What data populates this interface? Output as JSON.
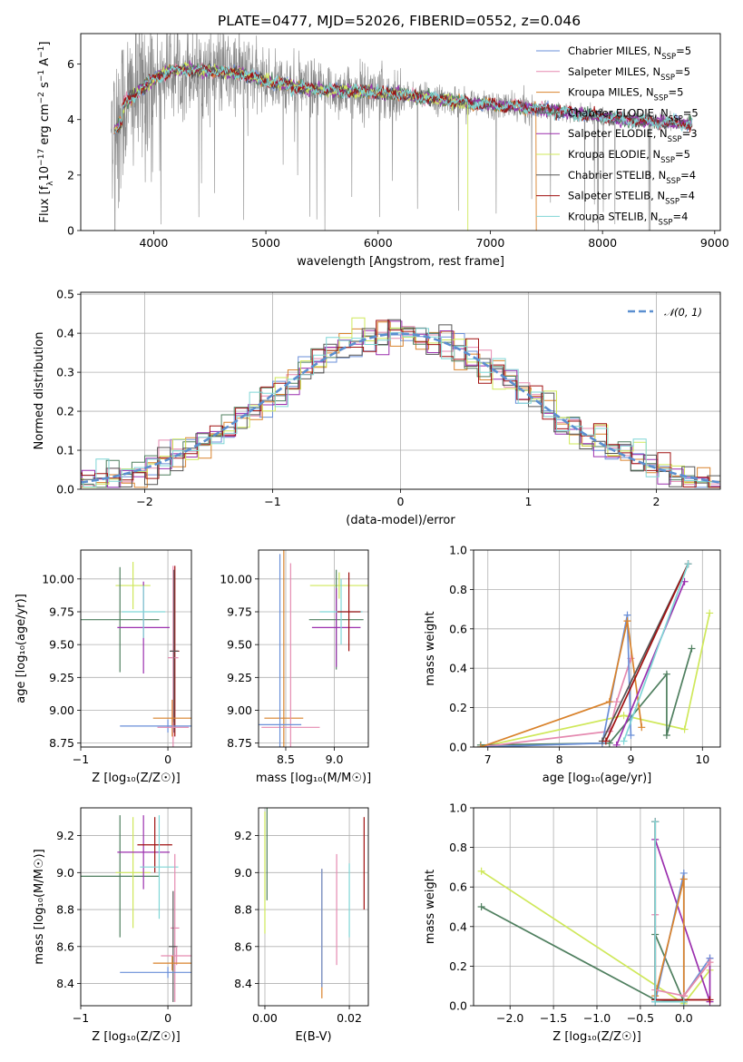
{
  "title": "PLATE=0477, MJD=52026, FIBERID=0552, z=0.046",
  "colors": {
    "chabrier_miles": "#6a8fd8",
    "salpeter_miles": "#e58ab0",
    "kroupa_miles": "#d9822b",
    "chabrier_elodie": "#4f7f5f",
    "salpeter_elodie": "#9b2fae",
    "kroupa_elodie": "#cfe85a",
    "chabrier_stelib": "#555555",
    "salpeter_stelib": "#a01010",
    "kroupa_stelib": "#7fd6d6",
    "data": "#888888",
    "normal": "#5b8fd0"
  },
  "legend_spectrum": [
    {
      "text": "Chabrier MILES, N",
      "sub": "SSP",
      "tail": "=5",
      "color": "#6a8fd8"
    },
    {
      "text": "Salpeter MILES, N",
      "sub": "SSP",
      "tail": "=5",
      "color": "#e58ab0"
    },
    {
      "text": "Kroupa MILES, N",
      "sub": "SSP",
      "tail": "=5",
      "color": "#d9822b"
    },
    {
      "text": "Chabrier ELODIE, N",
      "sub": "SSP",
      "tail": "=5",
      "color": "#4f7f5f"
    },
    {
      "text": "Salpeter ELODIE, N",
      "sub": "SSP",
      "tail": "=3",
      "color": "#9b2fae"
    },
    {
      "text": "Kroupa ELODIE, N",
      "sub": "SSP",
      "tail": "=5",
      "color": "#cfe85a"
    },
    {
      "text": "Chabrier STELIB, N",
      "sub": "SSP",
      "tail": "=4",
      "color": "#555555"
    },
    {
      "text": "Salpeter STELIB, N",
      "sub": "SSP",
      "tail": "=4",
      "color": "#a01010"
    },
    {
      "text": "Kroupa STELIB, N",
      "sub": "SSP",
      "tail": "=4",
      "color": "#7fd6d6"
    }
  ],
  "legend_hist": "𝒩(0, 1)",
  "chart_data": [
    {
      "id": "spectrum",
      "type": "line",
      "xlabel": "wavelength [Angstrom, rest frame]",
      "ylabel_parts": [
        "Flux [f",
        "λ",
        "10",
        "−17",
        " erg cm",
        "−2",
        " s",
        "−1",
        " A",
        "−1",
        "]"
      ],
      "xlim": [
        3350,
        9050
      ],
      "ylim": [
        0,
        7.1
      ],
      "xticks": [
        4000,
        5000,
        6000,
        7000,
        8000,
        9000
      ],
      "yticks": [
        0,
        2,
        4,
        6
      ],
      "continuum": [
        [
          3650,
          4.1
        ],
        [
          3800,
          4.8
        ],
        [
          3950,
          5.3
        ],
        [
          4100,
          5.7
        ],
        [
          4300,
          5.8
        ],
        [
          4500,
          5.75
        ],
        [
          4800,
          5.65
        ],
        [
          5000,
          5.4
        ],
        [
          5300,
          5.15
        ],
        [
          5600,
          5.05
        ],
        [
          5900,
          5.0
        ],
        [
          6200,
          4.9
        ],
        [
          6500,
          4.75
        ],
        [
          6800,
          4.6
        ],
        [
          7100,
          4.5
        ],
        [
          7400,
          4.4
        ],
        [
          7800,
          4.2
        ],
        [
          8200,
          4.0
        ],
        [
          8500,
          3.9
        ],
        [
          8800,
          3.85
        ]
      ]
    },
    {
      "id": "residuals",
      "type": "histogram",
      "xlabel": "(data-model)/error",
      "ylabel": "Normed distribution",
      "xlim": [
        -2.5,
        2.5
      ],
      "ylim": [
        0,
        0.505
      ],
      "xticks": [
        -2,
        -1,
        0,
        1,
        2
      ],
      "xticklabels": [
        "−2",
        "−1",
        "0",
        "1",
        "2"
      ],
      "yticks": [
        0.0,
        0.1,
        0.2,
        0.3,
        0.4,
        0.5
      ],
      "yticklabels": [
        "0.0",
        "0.1",
        "0.2",
        "0.3",
        "0.4",
        "0.5"
      ],
      "bin_width": 0.1
    },
    {
      "id": "age_vs_Z",
      "type": "errorbar",
      "xlabel": "Z [log₁₀(Z/Z☉)]",
      "ylabel": "age  [log₁₀(age/yr)]",
      "xlim": [
        -1.0,
        0.27
      ],
      "ylim": [
        8.72,
        10.22
      ],
      "xticks": [
        -1,
        0
      ],
      "xticklabels": [
        "−1",
        "0"
      ],
      "yticks": [
        8.75,
        9.0,
        9.25,
        9.5,
        9.75,
        10.0
      ],
      "yticklabels": [
        "8.75",
        "9.00",
        "9.25",
        "9.50",
        "9.75",
        "10.00"
      ],
      "points": [
        {
          "x": -0.4,
          "xerr": 0.2,
          "y": 9.95,
          "yerr": 0.18,
          "color": "#cfe85a"
        },
        {
          "x": -0.55,
          "xerr": 0.45,
          "y": 9.69,
          "yerr": 0.4,
          "color": "#4f7f5f"
        },
        {
          "x": -0.28,
          "xerr": 0.3,
          "y": 9.63,
          "yerr": 0.35,
          "color": "#9b2fae"
        },
        {
          "x": -0.28,
          "xerr": 0.25,
          "y": 9.75,
          "yerr": 0.2,
          "color": "#7fd6d6"
        },
        {
          "x": 0.08,
          "xerr": 0.05,
          "y": 9.45,
          "yerr": 0.65,
          "color": "#a01010"
        },
        {
          "x": 0.06,
          "xerr": 0.06,
          "y": 9.4,
          "yerr": 0.7,
          "color": "#e58ab0"
        },
        {
          "x": 0.07,
          "xerr": 0.05,
          "y": 9.45,
          "yerr": 0.62,
          "color": "#555555"
        },
        {
          "x": 0.05,
          "xerr": 0.22,
          "y": 8.94,
          "yerr": 0.14,
          "color": "#d9822b"
        },
        {
          "x": 0.0,
          "xerr": 0.55,
          "y": 8.88,
          "yerr": 0.05,
          "color": "#6a8fd8"
        },
        {
          "x": 0.06,
          "xerr": 0.18,
          "y": 8.87,
          "yerr": 0.04,
          "color": "#e58ab0"
        }
      ]
    },
    {
      "id": "age_vs_mass",
      "type": "errorbar",
      "xlabel": "mass [log₁₀(M/M☉)]",
      "ylabel": "",
      "xlim": [
        8.22,
        9.35
      ],
      "ylim": [
        8.72,
        10.22
      ],
      "xticks": [
        8.5,
        9.0
      ],
      "xticklabels": [
        "8.5",
        "9.0"
      ],
      "yticks": [
        8.75,
        9.0,
        9.25,
        9.5,
        9.75,
        10.0
      ],
      "yticklabels": [
        "8.75",
        "9.00",
        "9.25",
        "9.50",
        "9.75",
        "10.00"
      ],
      "points": [
        {
          "x": 9.05,
          "xerr": 0.3,
          "y": 9.95,
          "yerr": 0.1,
          "color": "#cfe85a"
        },
        {
          "x": 9.02,
          "xerr": 0.28,
          "y": 9.69,
          "yerr": 0.38,
          "color": "#4f7f5f"
        },
        {
          "x": 9.02,
          "xerr": 0.25,
          "y": 9.63,
          "yerr": 0.3,
          "color": "#9b2fae"
        },
        {
          "x": 9.07,
          "xerr": 0.22,
          "y": 9.75,
          "yerr": 0.25,
          "color": "#7fd6d6"
        },
        {
          "x": 9.15,
          "xerr": 0.12,
          "y": 9.75,
          "yerr": 0.3,
          "color": "#a01010"
        },
        {
          "x": 8.48,
          "xerr": 0.2,
          "y": 8.94,
          "yerr": 1.3,
          "color": "#d9822b"
        },
        {
          "x": 8.55,
          "xerr": 0.3,
          "y": 8.87,
          "yerr": 1.25,
          "color": "#e58ab0"
        },
        {
          "x": 8.44,
          "xerr": 0.22,
          "y": 8.89,
          "yerr": 1.3,
          "color": "#6a8fd8"
        }
      ]
    },
    {
      "id": "weight_vs_age",
      "type": "line",
      "xlabel": "age  [log₁₀(age/yr)]",
      "ylabel": "mass weight",
      "xlim": [
        6.8,
        10.25
      ],
      "ylim": [
        0,
        1.0
      ],
      "xticks": [
        7,
        8,
        9,
        10
      ],
      "xticklabels": [
        "7",
        "8",
        "9",
        "10"
      ],
      "yticks": [
        0.0,
        0.2,
        0.4,
        0.6,
        0.8,
        1.0
      ],
      "yticklabels": [
        "0.0",
        "0.2",
        "0.4",
        "0.6",
        "0.8",
        "1.0"
      ],
      "series": [
        {
          "color": "#cfe85a",
          "x": [
            6.9,
            8.9,
            9.75,
            10.1
          ],
          "y": [
            0.0,
            0.16,
            0.09,
            0.68
          ]
        },
        {
          "color": "#4f7f5f",
          "x": [
            6.9,
            8.7,
            9.5,
            9.5,
            9.85
          ],
          "y": [
            0.01,
            0.02,
            0.37,
            0.06,
            0.5
          ]
        },
        {
          "color": "#e58ab0",
          "x": [
            6.9,
            8.7,
            8.8,
            9.0
          ],
          "y": [
            0.0,
            0.08,
            0.23,
            0.45
          ]
        },
        {
          "color": "#6a8fd8",
          "x": [
            6.9,
            8.6,
            8.95,
            9.0
          ],
          "y": [
            0.0,
            0.02,
            0.67,
            0.06
          ]
        },
        {
          "color": "#d9822b",
          "x": [
            6.9,
            8.7,
            8.95,
            9.15
          ],
          "y": [
            0.0,
            0.23,
            0.64,
            0.1
          ]
        },
        {
          "color": "#9b2fae",
          "x": [
            8.8,
            9.75
          ],
          "y": [
            0.01,
            0.84
          ]
        },
        {
          "color": "#555555",
          "x": [
            8.6,
            9.8
          ],
          "y": [
            0.03,
            0.93
          ]
        },
        {
          "color": "#a01010",
          "x": [
            8.65,
            9.8
          ],
          "y": [
            0.03,
            0.93
          ]
        },
        {
          "color": "#7fd6d6",
          "x": [
            8.9,
            9.8
          ],
          "y": [
            0.03,
            0.93
          ]
        }
      ]
    },
    {
      "id": "mass_vs_Z",
      "type": "errorbar",
      "xlabel": "Z [log₁₀(Z/Z☉)]",
      "ylabel": "mass [log₁₀(M/M☉)]",
      "xlim": [
        -1.0,
        0.27
      ],
      "ylim": [
        8.28,
        9.35
      ],
      "xticks": [
        -1,
        0
      ],
      "xticklabels": [
        "−1",
        "0"
      ],
      "yticks": [
        8.4,
        8.6,
        8.8,
        9.0,
        9.2
      ],
      "yticklabels": [
        "8.4",
        "8.6",
        "8.8",
        "9.0",
        "9.2"
      ],
      "points": [
        {
          "x": -0.55,
          "xerr": 0.45,
          "y": 8.98,
          "yerr": 0.33,
          "color": "#4f7f5f"
        },
        {
          "x": -0.4,
          "xerr": 0.2,
          "y": 9.0,
          "yerr": 0.3,
          "color": "#cfe85a"
        },
        {
          "x": -0.28,
          "xerr": 0.3,
          "y": 9.11,
          "yerr": 0.2,
          "color": "#9b2fae"
        },
        {
          "x": -0.15,
          "xerr": 0.2,
          "y": 9.15,
          "yerr": 0.15,
          "color": "#a01010"
        },
        {
          "x": -0.1,
          "xerr": 0.22,
          "y": 9.03,
          "yerr": 0.28,
          "color": "#7fd6d6"
        },
        {
          "x": 0.08,
          "xerr": 0.05,
          "y": 8.7,
          "yerr": 0.4,
          "color": "#e58ab0"
        },
        {
          "x": 0.06,
          "xerr": 0.05,
          "y": 8.6,
          "yerr": 0.3,
          "color": "#555555"
        },
        {
          "x": 0.1,
          "xerr": 0.18,
          "y": 8.55,
          "yerr": 0.05,
          "color": "#e58ab0"
        },
        {
          "x": 0.05,
          "xerr": 0.22,
          "y": 8.51,
          "yerr": 0.04,
          "color": "#d9822b"
        },
        {
          "x": 0.0,
          "xerr": 0.55,
          "y": 8.46,
          "yerr": 0.03,
          "color": "#6a8fd8"
        }
      ]
    },
    {
      "id": "mass_vs_EBV",
      "type": "errorbar",
      "xlabel": "E(B-V)",
      "ylabel": "",
      "xlim": [
        -0.0015,
        0.0245
      ],
      "ylim": [
        8.28,
        9.35
      ],
      "xticks": [
        0.0,
        0.02
      ],
      "xticklabels": [
        "0.00",
        "0.02"
      ],
      "yticks": [
        8.4,
        8.6,
        8.8,
        9.0,
        9.2
      ],
      "yticklabels": [
        "8.4",
        "8.6",
        "8.8",
        "9.0",
        "9.2"
      ],
      "points": [
        {
          "x": 0.0,
          "xerr": 0.0,
          "y": 9.0,
          "yerr": 0.33,
          "color": "#cfe85a"
        },
        {
          "x": 0.0005,
          "xerr": 0.0,
          "y": 9.1,
          "yerr": 0.25,
          "color": "#4f7f5f"
        },
        {
          "x": 0.0135,
          "xerr": 0.0,
          "y": 8.67,
          "yerr": 0.35,
          "color": "#d9822b"
        },
        {
          "x": 0.0135,
          "xerr": 0.0,
          "y": 8.7,
          "yerr": 0.32,
          "color": "#6a8fd8"
        },
        {
          "x": 0.017,
          "xerr": 0.0,
          "y": 8.8,
          "yerr": 0.3,
          "color": "#e58ab0"
        },
        {
          "x": 0.02,
          "xerr": 0.0,
          "y": 8.85,
          "yerr": 0.2,
          "color": "#7fd6d6"
        },
        {
          "x": 0.0235,
          "xerr": 0.0,
          "y": 9.05,
          "yerr": 0.25,
          "color": "#a01010"
        }
      ]
    },
    {
      "id": "weight_vs_Z",
      "type": "line",
      "xlabel": "Z [log₁₀(Z/Z☉)]",
      "ylabel": "mass weight",
      "xlim": [
        -2.42,
        0.42
      ],
      "ylim": [
        0,
        1.0
      ],
      "xticks": [
        -2.0,
        -1.5,
        -1.0,
        -0.5,
        0.0
      ],
      "xticklabels": [
        "−2.0",
        "−1.5",
        "−1.0",
        "−0.5",
        "0.0"
      ],
      "yticks": [
        0.0,
        0.2,
        0.4,
        0.6,
        0.8,
        1.0
      ],
      "yticklabels": [
        "0.0",
        "0.2",
        "0.4",
        "0.6",
        "0.8",
        "1.0"
      ],
      "series": [
        {
          "color": "#cfe85a",
          "x": [
            -2.33,
            0.0,
            0.3
          ],
          "y": [
            0.68,
            0.01,
            0.18
          ]
        },
        {
          "color": "#4f7f5f",
          "x": [
            -2.33,
            -0.33,
            -0.33,
            0.0
          ],
          "y": [
            0.5,
            0.03,
            0.36,
            0.02
          ]
        },
        {
          "color": "#9b2fae",
          "x": [
            -0.33,
            0.3,
            0.3
          ],
          "y": [
            0.84,
            0.02,
            0.24
          ]
        },
        {
          "color": "#6a8fd8",
          "x": [
            -0.33,
            0.0,
            0.0,
            0.3
          ],
          "y": [
            0.02,
            0.67,
            0.05,
            0.24
          ]
        },
        {
          "color": "#d9822b",
          "x": [
            -0.33,
            0.0,
            0.0,
            0.3
          ],
          "y": [
            0.05,
            0.64,
            0.05,
            0.22
          ]
        },
        {
          "color": "#e58ab0",
          "x": [
            -0.33,
            -0.33,
            0.0,
            0.3
          ],
          "y": [
            0.46,
            0.08,
            0.05,
            0.22
          ]
        },
        {
          "color": "#555555",
          "x": [
            -0.33,
            -0.33,
            0.0
          ],
          "y": [
            0.93,
            0.03,
            0.02
          ]
        },
        {
          "color": "#a01010",
          "x": [
            -0.33,
            -0.33,
            0.3
          ],
          "y": [
            0.93,
            0.03,
            0.03
          ]
        },
        {
          "color": "#7fd6d6",
          "x": [
            -0.33,
            -0.33,
            0.0
          ],
          "y": [
            0.93,
            0.02,
            0.02
          ]
        }
      ]
    }
  ]
}
